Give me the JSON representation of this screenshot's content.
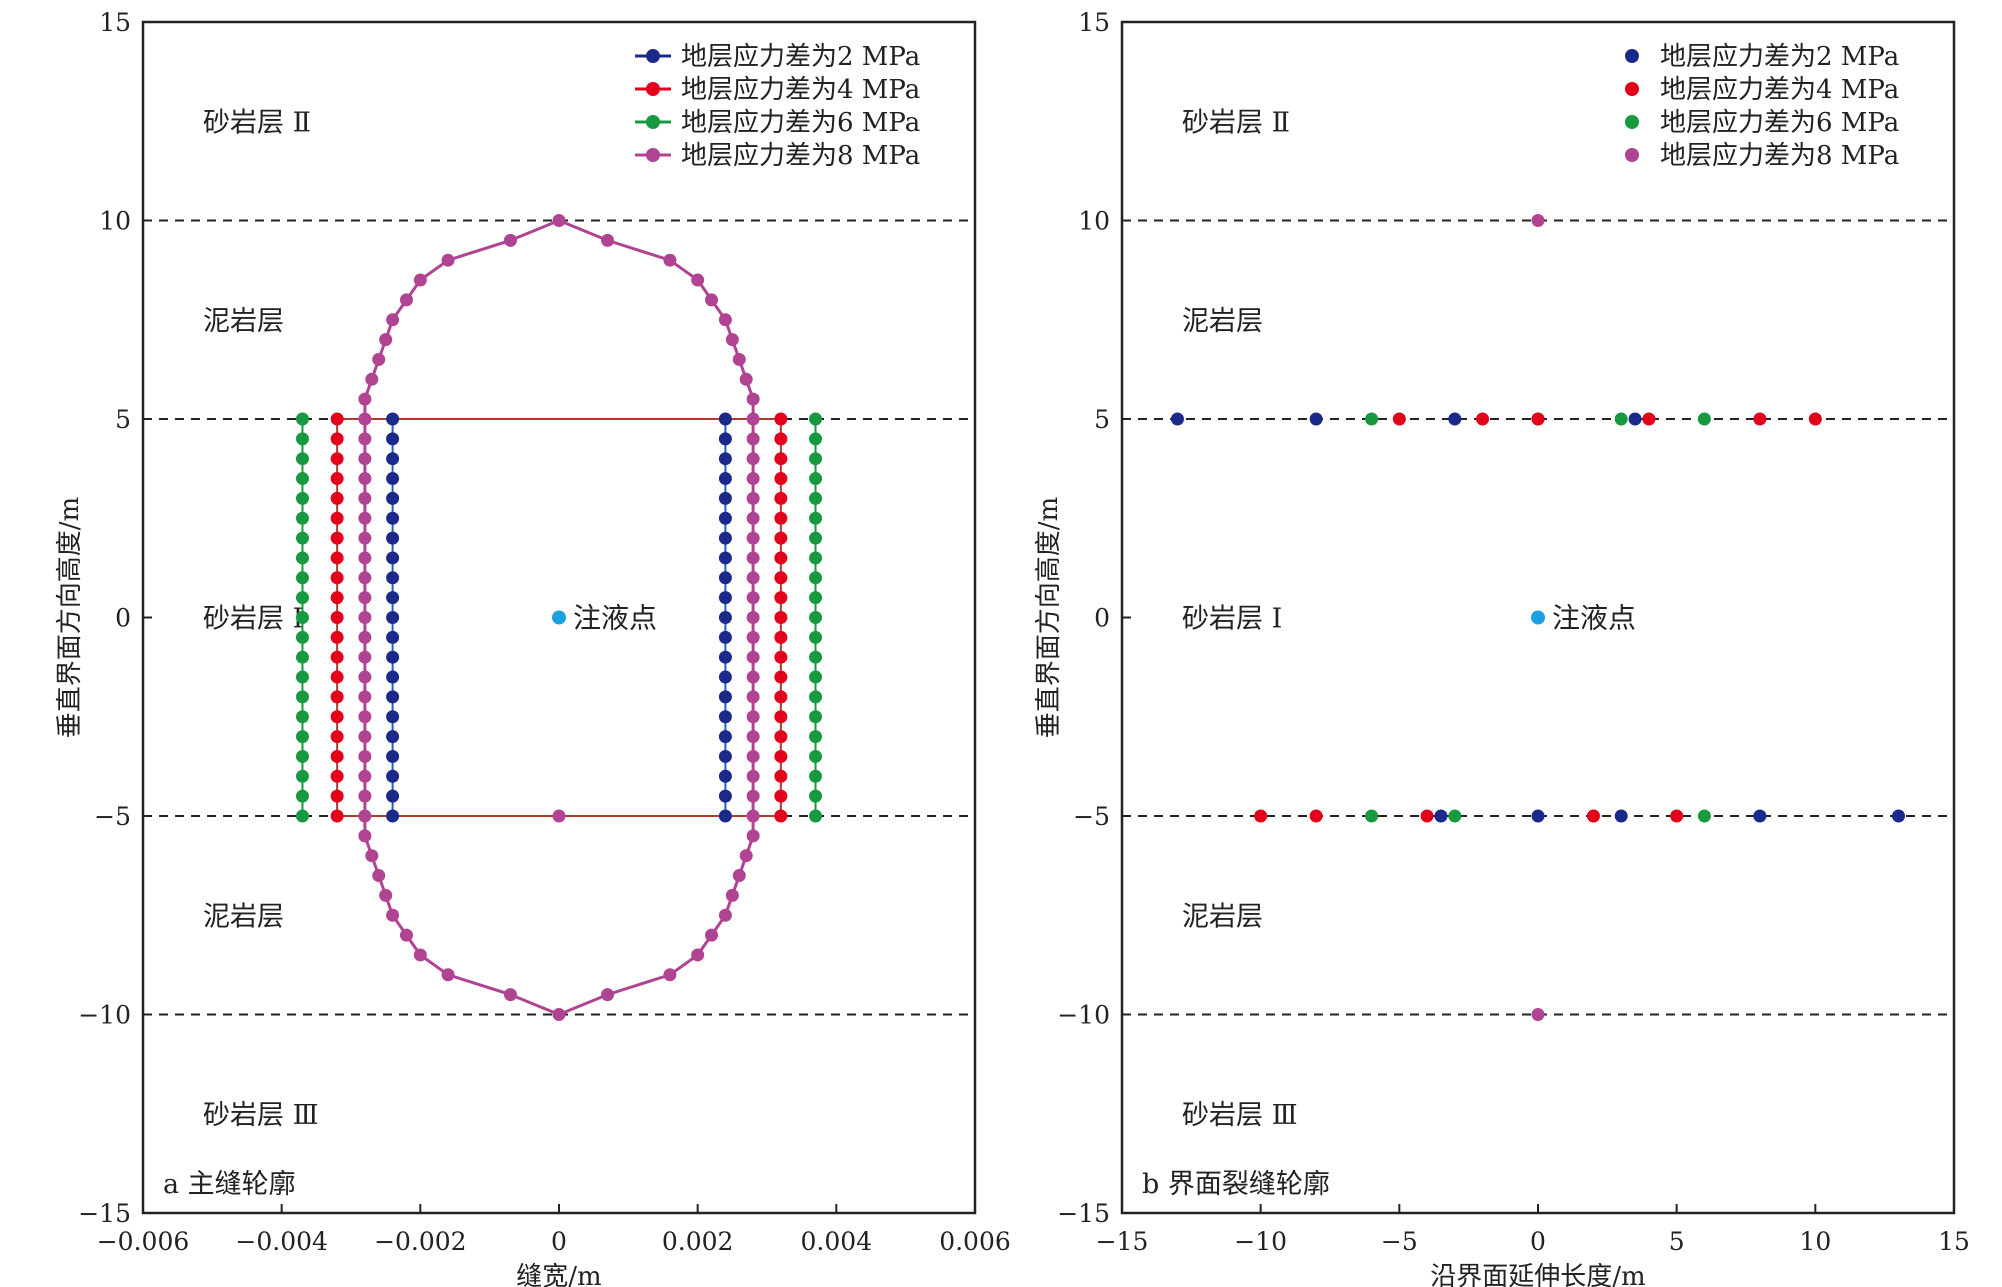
{
  "colors": {
    "s2": "#1b2a8a",
    "s4": "#e3001b",
    "s6": "#17993f",
    "s8": "#b04392",
    "line2": "#1e5fc8",
    "line4": "#b03a2e",
    "injection": "#1ba1e2",
    "axis": "#222222",
    "dash": "#222222"
  },
  "chart_data": [
    {
      "type": "line",
      "caption": "a 主缝轮廓",
      "xlabel": "缝宽/m",
      "ylabel": "垂直界面方向高度/m",
      "xlim": [
        -0.006,
        0.006
      ],
      "ylim": [
        -15,
        15
      ],
      "xticks": [
        "−0.006",
        "−0.004",
        "−0.002",
        "0",
        "0.002",
        "0.004",
        "0.006"
      ],
      "yticks": [
        "15",
        "10",
        "5",
        "0",
        "−5",
        "−10",
        "−15"
      ],
      "legend_position": "top-right",
      "boundaries": [
        10,
        5,
        -5,
        -10
      ],
      "region_labels": [
        "砂岩层 Ⅱ",
        "泥岩层",
        "砂岩层 Ⅰ",
        "泥岩层",
        "砂岩层 Ⅲ"
      ],
      "injection": {
        "label": "注液点",
        "x": 0,
        "y": 0
      },
      "series": [
        {
          "name": "地层应力差为2 MPa",
          "half_width": 0.0024,
          "y_range": [
            -5,
            5
          ],
          "connect_ends": true
        },
        {
          "name": "地层应力差为4 MPa",
          "half_width": 0.0032,
          "y_range": [
            -5,
            5
          ],
          "connect_ends": true
        },
        {
          "name": "地层应力差为6 MPa",
          "half_width": 0.0037,
          "y_range": [
            -5,
            5
          ],
          "connect_ends": false
        },
        {
          "name": "地层应力差为8 MPa",
          "contour_right_upper": [
            [
              0,
              10
            ],
            [
              0.0007,
              9.5
            ],
            [
              0.0016,
              9.0
            ],
            [
              0.002,
              8.5
            ],
            [
              0.0022,
              8.0
            ],
            [
              0.0024,
              7.5
            ],
            [
              0.0025,
              7.0
            ],
            [
              0.0026,
              6.5
            ],
            [
              0.0027,
              6.0
            ],
            [
              0.0028,
              5.5
            ],
            [
              0.0028,
              5.0
            ],
            [
              0.0028,
              4.5
            ],
            [
              0.0028,
              4.0
            ],
            [
              0.0028,
              3.5
            ],
            [
              0.0028,
              3.0
            ],
            [
              0.0028,
              2.5
            ],
            [
              0.0028,
              2.0
            ],
            [
              0.0028,
              1.5
            ],
            [
              0.0028,
              1.0
            ],
            [
              0.0028,
              0.5
            ],
            [
              0.0028,
              0.0
            ]
          ],
          "center_points": [
            [
              0,
              -5
            ]
          ]
        }
      ]
    },
    {
      "type": "scatter",
      "caption": "b 界面裂缝轮廓",
      "xlabel": "沿界面延伸长度/m",
      "ylabel": "垂直界面方向高度/m",
      "xlim": [
        -15,
        15
      ],
      "ylim": [
        -15,
        15
      ],
      "xticks": [
        "−15",
        "−10",
        "−5",
        "0",
        "5",
        "10",
        "15"
      ],
      "yticks": [
        "15",
        "10",
        "5",
        "0",
        "−5",
        "−10",
        "−15"
      ],
      "legend_position": "top-right",
      "boundaries": [
        10,
        5,
        -5,
        -10
      ],
      "region_labels": [
        "砂岩层 Ⅱ",
        "泥岩层",
        "砂岩层 Ⅰ",
        "泥岩层",
        "砂岩层 Ⅲ"
      ],
      "injection": {
        "label": "注液点",
        "x": 0,
        "y": 0
      },
      "series": [
        {
          "name": "地层应力差为2 MPa",
          "points": [
            [
              -13,
              5
            ],
            [
              -8,
              5
            ],
            [
              -3,
              5
            ],
            [
              0,
              5
            ],
            [
              3.5,
              5
            ],
            [
              -3.5,
              -5
            ],
            [
              0,
              -5
            ],
            [
              3,
              -5
            ],
            [
              8,
              -5
            ],
            [
              13,
              -5
            ]
          ]
        },
        {
          "name": "地层应力差为4 MPa",
          "points": [
            [
              -5,
              5
            ],
            [
              -2,
              5
            ],
            [
              0,
              5
            ],
            [
              4,
              5
            ],
            [
              8,
              5
            ],
            [
              10,
              5
            ],
            [
              -10,
              -5
            ],
            [
              -8,
              -5
            ],
            [
              -4,
              -5
            ],
            [
              2,
              -5
            ],
            [
              5,
              -5
            ]
          ]
        },
        {
          "name": "地层应力差为6 MPa",
          "points": [
            [
              -6,
              5
            ],
            [
              3,
              5
            ],
            [
              6,
              5
            ],
            [
              -6,
              -5
            ],
            [
              -3,
              -5
            ],
            [
              6,
              -5
            ]
          ]
        },
        {
          "name": "地层应力差为8 MPa",
          "points": [
            [
              0,
              10
            ],
            [
              0,
              -10
            ]
          ]
        }
      ]
    }
  ]
}
